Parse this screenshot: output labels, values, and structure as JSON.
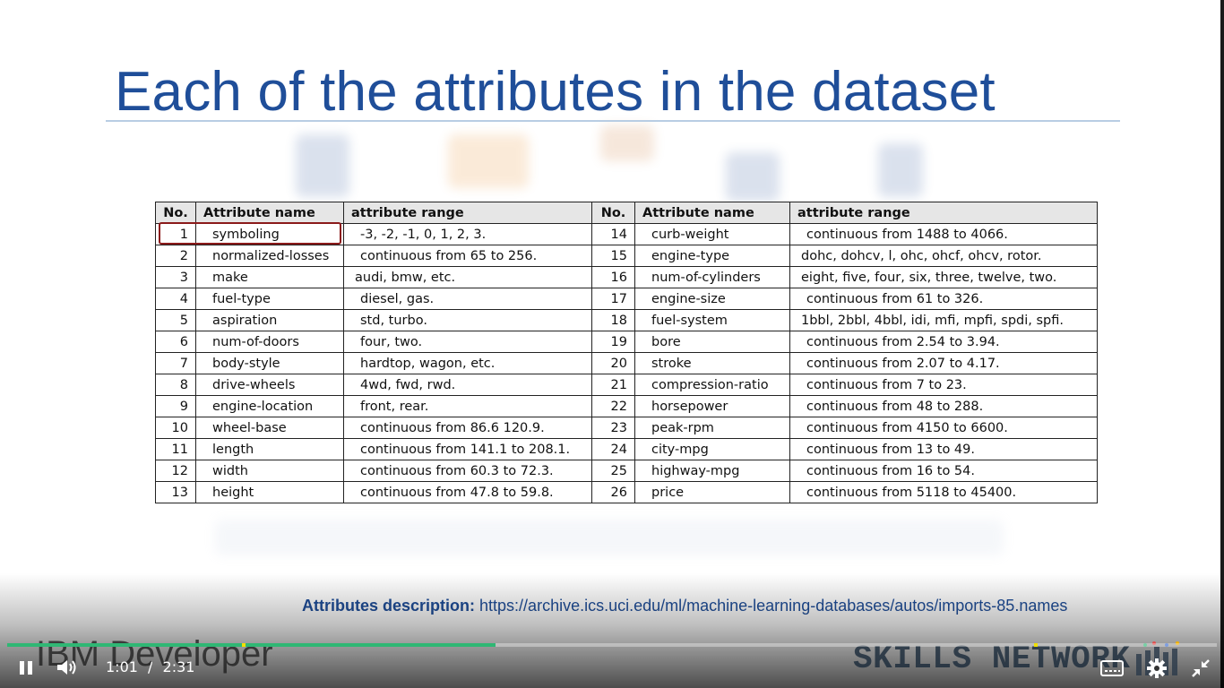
{
  "slide": {
    "title": "Each of the attributes in the dataset",
    "table": {
      "headers": [
        "No.",
        "Attribute name",
        "attribute range",
        "No.",
        "Attribute name",
        "attribute range"
      ],
      "rows": [
        {
          "no1": "1",
          "name1": "symboling",
          "range1": "-3, -2, -1, 0, 1, 2, 3.",
          "no2": "14",
          "name2": "curb-weight",
          "range2": "continuous from 1488 to 4066."
        },
        {
          "no1": "2",
          "name1": "normalized-losses",
          "range1": "continuous from 65 to 256.",
          "no2": "15",
          "name2": "engine-type",
          "range2": "dohc, dohcv, l, ohc, ohcf, ohcv, rotor."
        },
        {
          "no1": "3",
          "name1": "make",
          "range1": "audi, bmw, etc.",
          "no2": "16",
          "name2": "num-of-cylinders",
          "range2": "eight, five, four, six, three, twelve, two."
        },
        {
          "no1": "4",
          "name1": "fuel-type",
          "range1": "diesel, gas.",
          "no2": "17",
          "name2": "engine-size",
          "range2": "continuous from 61 to 326."
        },
        {
          "no1": "5",
          "name1": "aspiration",
          "range1": "std, turbo.",
          "no2": "18",
          "name2": "fuel-system",
          "range2": "1bbl, 2bbl, 4bbl, idi, mfi, mpfi, spdi, spfi."
        },
        {
          "no1": "6",
          "name1": "num-of-doors",
          "range1": "four, two.",
          "no2": "19",
          "name2": "bore",
          "range2": "continuous from 2.54 to 3.94."
        },
        {
          "no1": "7",
          "name1": "body-style",
          "range1": "hardtop, wagon, etc.",
          "no2": "20",
          "name2": "stroke",
          "range2": "continuous from 2.07 to 4.17."
        },
        {
          "no1": "8",
          "name1": "drive-wheels",
          "range1": "4wd, fwd, rwd.",
          "no2": "21",
          "name2": "compression-ratio",
          "range2": "continuous from 7 to 23."
        },
        {
          "no1": "9",
          "name1": "engine-location",
          "range1": "front, rear.",
          "no2": "22",
          "name2": "horsepower",
          "range2": "continuous from 48 to 288."
        },
        {
          "no1": "10",
          "name1": "wheel-base",
          "range1": "continuous from 86.6 120.9.",
          "no2": "23",
          "name2": "peak-rpm",
          "range2": "continuous from 4150 to 6600."
        },
        {
          "no1": "11",
          "name1": "length",
          "range1": "continuous from 141.1 to 208.1.",
          "no2": "24",
          "name2": "city-mpg",
          "range2": "continuous from 13 to 49."
        },
        {
          "no1": "12",
          "name1": "width",
          "range1": "continuous from 60.3 to 72.3.",
          "no2": "25",
          "name2": "highway-mpg",
          "range2": "continuous from 16 to 54."
        },
        {
          "no1": "13",
          "name1": "height",
          "range1": "continuous from 47.8 to 59.8.",
          "no2": "26",
          "name2": "price",
          "range2": "continuous from 5118 to 45400."
        }
      ]
    },
    "footer_label": "Attributes description:",
    "footer_url": "https://archive.ics.uci.edu/ml/machine-learning-databases/autos/imports-85.names",
    "brand_left": "IBM Developer",
    "brand_right": "SKILLS NETWORK"
  },
  "player": {
    "current_time": "1:01",
    "separator": "/",
    "duration": "2:31",
    "progress_fraction": 0.4037,
    "icons": {
      "play_pause": "pause-icon",
      "volume": "volume-icon",
      "captions": "captions-icon",
      "settings": "gear-icon",
      "fullscreen": "exit-fullscreen-icon"
    },
    "colors": {
      "progress": "#2fb774",
      "title": "#1f4e99",
      "highlight_box": "#8b1a1a"
    }
  }
}
